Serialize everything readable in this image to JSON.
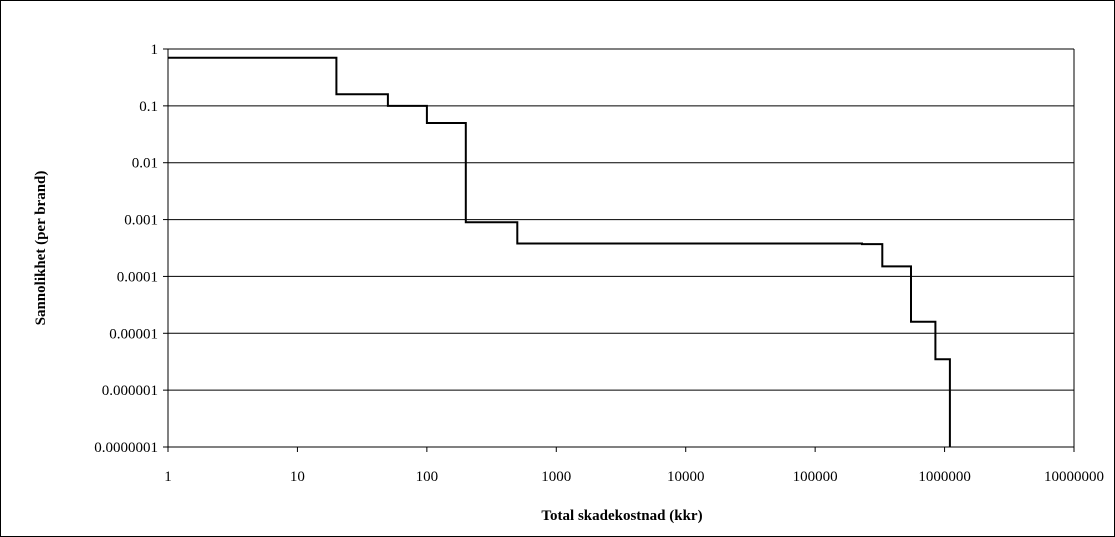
{
  "chart_data": {
    "type": "line",
    "title": "",
    "xlabel": "Total skadekostnad (kkr)",
    "ylabel": "Sannolikhet (per brand)",
    "xscale": "log",
    "yscale": "log",
    "xlim": [
      1,
      10000000
    ],
    "ylim": [
      1e-07,
      1
    ],
    "grid": {
      "x": false,
      "y": true
    },
    "legend": "none",
    "x_tick_labels": [
      "1",
      "10",
      "100",
      "1000",
      "10000",
      "100000",
      "1000000",
      "10000000"
    ],
    "y_tick_labels": [
      "1",
      "0.1",
      "0.01",
      "0.001",
      "0.0001",
      "0.00001",
      "0.000001",
      "0.0000001"
    ],
    "line_color": "#000000",
    "series": [
      {
        "step": "post",
        "x": [
          1,
          20,
          50,
          100,
          200,
          500,
          230000,
          330000,
          550000,
          850000,
          1100000
        ],
        "y": [
          0.7,
          0.16,
          0.1,
          0.05,
          0.0009,
          0.00038,
          0.00037,
          0.00015,
          1.6e-05,
          3.5e-06,
          1e-07
        ]
      }
    ]
  }
}
